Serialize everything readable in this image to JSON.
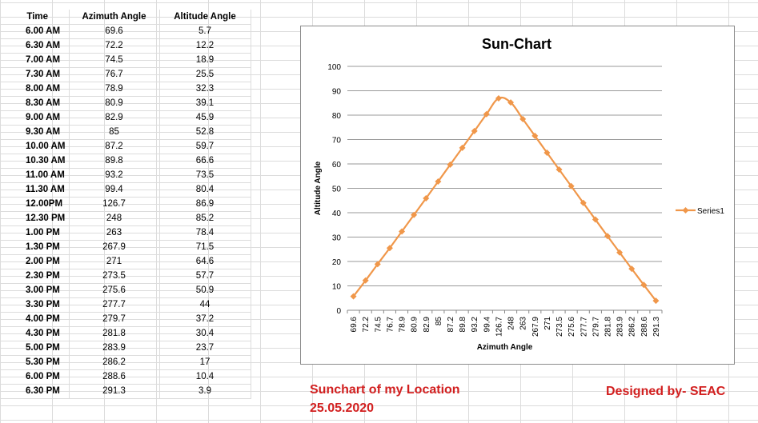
{
  "table": {
    "headers": {
      "time": "Time",
      "azimuth": "Azimuth Angle",
      "altitude": "Altitude Angle"
    },
    "rows": [
      {
        "time": "6.00 AM",
        "azimuth": "69.6",
        "altitude": "5.7"
      },
      {
        "time": "6.30 AM",
        "azimuth": "72.2",
        "altitude": "12.2"
      },
      {
        "time": "7.00 AM",
        "azimuth": "74.5",
        "altitude": "18.9"
      },
      {
        "time": "7.30 AM",
        "azimuth": "76.7",
        "altitude": "25.5"
      },
      {
        "time": "8.00 AM",
        "azimuth": "78.9",
        "altitude": "32.3"
      },
      {
        "time": "8.30 AM",
        "azimuth": "80.9",
        "altitude": "39.1"
      },
      {
        "time": "9.00 AM",
        "azimuth": "82.9",
        "altitude": "45.9"
      },
      {
        "time": "9.30 AM",
        "azimuth": "85",
        "altitude": "52.8"
      },
      {
        "time": "10.00 AM",
        "azimuth": "87.2",
        "altitude": "59.7"
      },
      {
        "time": "10.30 AM",
        "azimuth": "89.8",
        "altitude": "66.6"
      },
      {
        "time": "11.00 AM",
        "azimuth": "93.2",
        "altitude": "73.5"
      },
      {
        "time": "11.30 AM",
        "azimuth": "99.4",
        "altitude": "80.4"
      },
      {
        "time": "12.00PM",
        "azimuth": "126.7",
        "altitude": "86.9"
      },
      {
        "time": "12.30 PM",
        "azimuth": "248",
        "altitude": "85.2"
      },
      {
        "time": "1.00 PM",
        "azimuth": "263",
        "altitude": "78.4"
      },
      {
        "time": "1.30 PM",
        "azimuth": "267.9",
        "altitude": "71.5"
      },
      {
        "time": "2.00 PM",
        "azimuth": "271",
        "altitude": "64.6"
      },
      {
        "time": "2.30 PM",
        "azimuth": "273.5",
        "altitude": "57.7"
      },
      {
        "time": "3.00 PM",
        "azimuth": "275.6",
        "altitude": "50.9"
      },
      {
        "time": "3.30 PM",
        "azimuth": "277.7",
        "altitude": "44"
      },
      {
        "time": "4.00 PM",
        "azimuth": "279.7",
        "altitude": "37.2"
      },
      {
        "time": "4.30 PM",
        "azimuth": "281.8",
        "altitude": "30.4"
      },
      {
        "time": "5.00 PM",
        "azimuth": "283.9",
        "altitude": "23.7"
      },
      {
        "time": "5.30 PM",
        "azimuth": "286.2",
        "altitude": "17"
      },
      {
        "time": "6.00 PM",
        "azimuth": "288.6",
        "altitude": "10.4"
      },
      {
        "time": "6.30 PM",
        "azimuth": "291.3",
        "altitude": "3.9"
      }
    ]
  },
  "captions": {
    "location": "Sunchart of my Location",
    "date": "25.05.2020",
    "designer": "Designed by- SEAC"
  },
  "chart_data": {
    "type": "line",
    "title": "Sun-Chart",
    "xlabel": "Azimuth Angle",
    "ylabel": "Altitude  Angle",
    "categories": [
      "69.6",
      "72.2",
      "74.5",
      "76.7",
      "78.9",
      "80.9",
      "82.9",
      "85",
      "87.2",
      "89.8",
      "93.2",
      "99.4",
      "126.7",
      "248",
      "263",
      "267.9",
      "271",
      "273.5",
      "275.6",
      "277.7",
      "279.7",
      "281.8",
      "283.9",
      "286.2",
      "288.6",
      "291.3"
    ],
    "series": [
      {
        "name": "Series1",
        "values": [
          5.7,
          12.2,
          18.9,
          25.5,
          32.3,
          39.1,
          45.9,
          52.8,
          59.7,
          66.6,
          73.5,
          80.4,
          86.9,
          85.2,
          78.4,
          71.5,
          64.6,
          57.7,
          50.9,
          44,
          37.2,
          30.4,
          23.7,
          17,
          10.4,
          3.9
        ]
      }
    ],
    "ylim": [
      0,
      100
    ],
    "yticks": [
      "0",
      "10",
      "20",
      "30",
      "40",
      "50",
      "60",
      "70",
      "80",
      "90",
      "100"
    ],
    "grid": true,
    "legend": "right",
    "colors": {
      "series": "#f0974a",
      "grid": "#9a9a9a"
    }
  }
}
